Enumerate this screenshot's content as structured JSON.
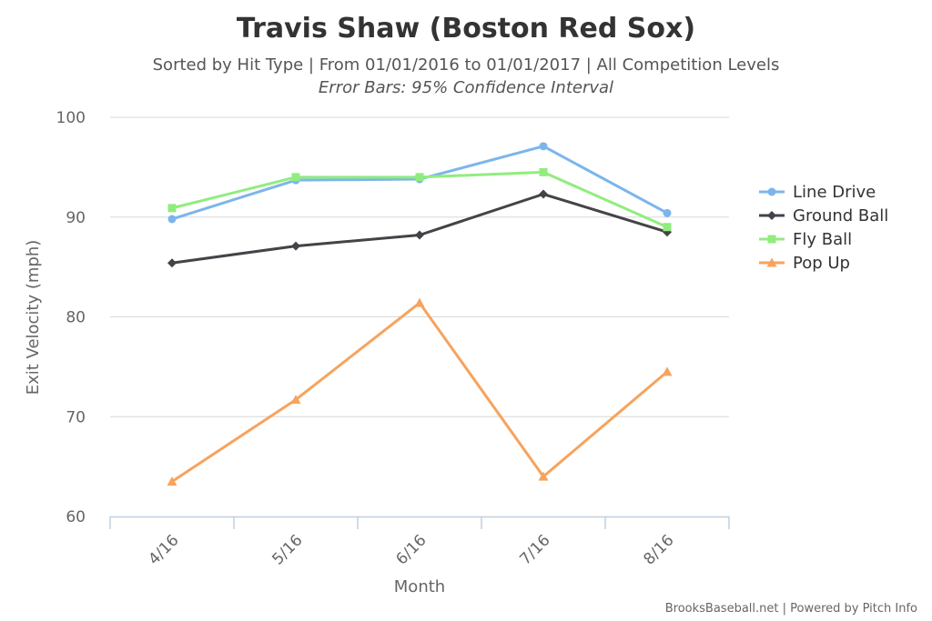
{
  "chart_data": {
    "type": "line",
    "title": "Travis Shaw (Boston Red Sox)",
    "subtitle": "Sorted by Hit Type | From 01/01/2016 to 01/01/2017 | All Competition Levels",
    "subtitle2": "Error Bars: 95% Confidence Interval",
    "xlabel": "Month",
    "ylabel": "Exit Velocity (mph)",
    "categories": [
      "4/16",
      "5/16",
      "6/16",
      "7/16",
      "8/16"
    ],
    "ylim": [
      60,
      100
    ],
    "yticks": [
      60,
      70,
      80,
      90,
      100
    ],
    "grid": true,
    "legend_position": "right",
    "series": [
      {
        "name": "Line Drive",
        "color": "#7cb5ec",
        "marker": "circle",
        "values": [
          89.8,
          93.7,
          93.8,
          97.1,
          90.4
        ]
      },
      {
        "name": "Ground Ball",
        "color": "#434348",
        "marker": "diamond",
        "values": [
          85.4,
          87.1,
          88.2,
          92.3,
          88.5
        ]
      },
      {
        "name": "Fly Ball",
        "color": "#90ed7d",
        "marker": "square",
        "values": [
          90.9,
          94.0,
          94.0,
          94.5,
          89.0
        ]
      },
      {
        "name": "Pop Up",
        "color": "#f7a35c",
        "marker": "triangle",
        "values": [
          63.5,
          71.7,
          81.4,
          64.0,
          74.5
        ]
      }
    ],
    "credits": "BrooksBaseball.net | Powered by Pitch Info"
  }
}
